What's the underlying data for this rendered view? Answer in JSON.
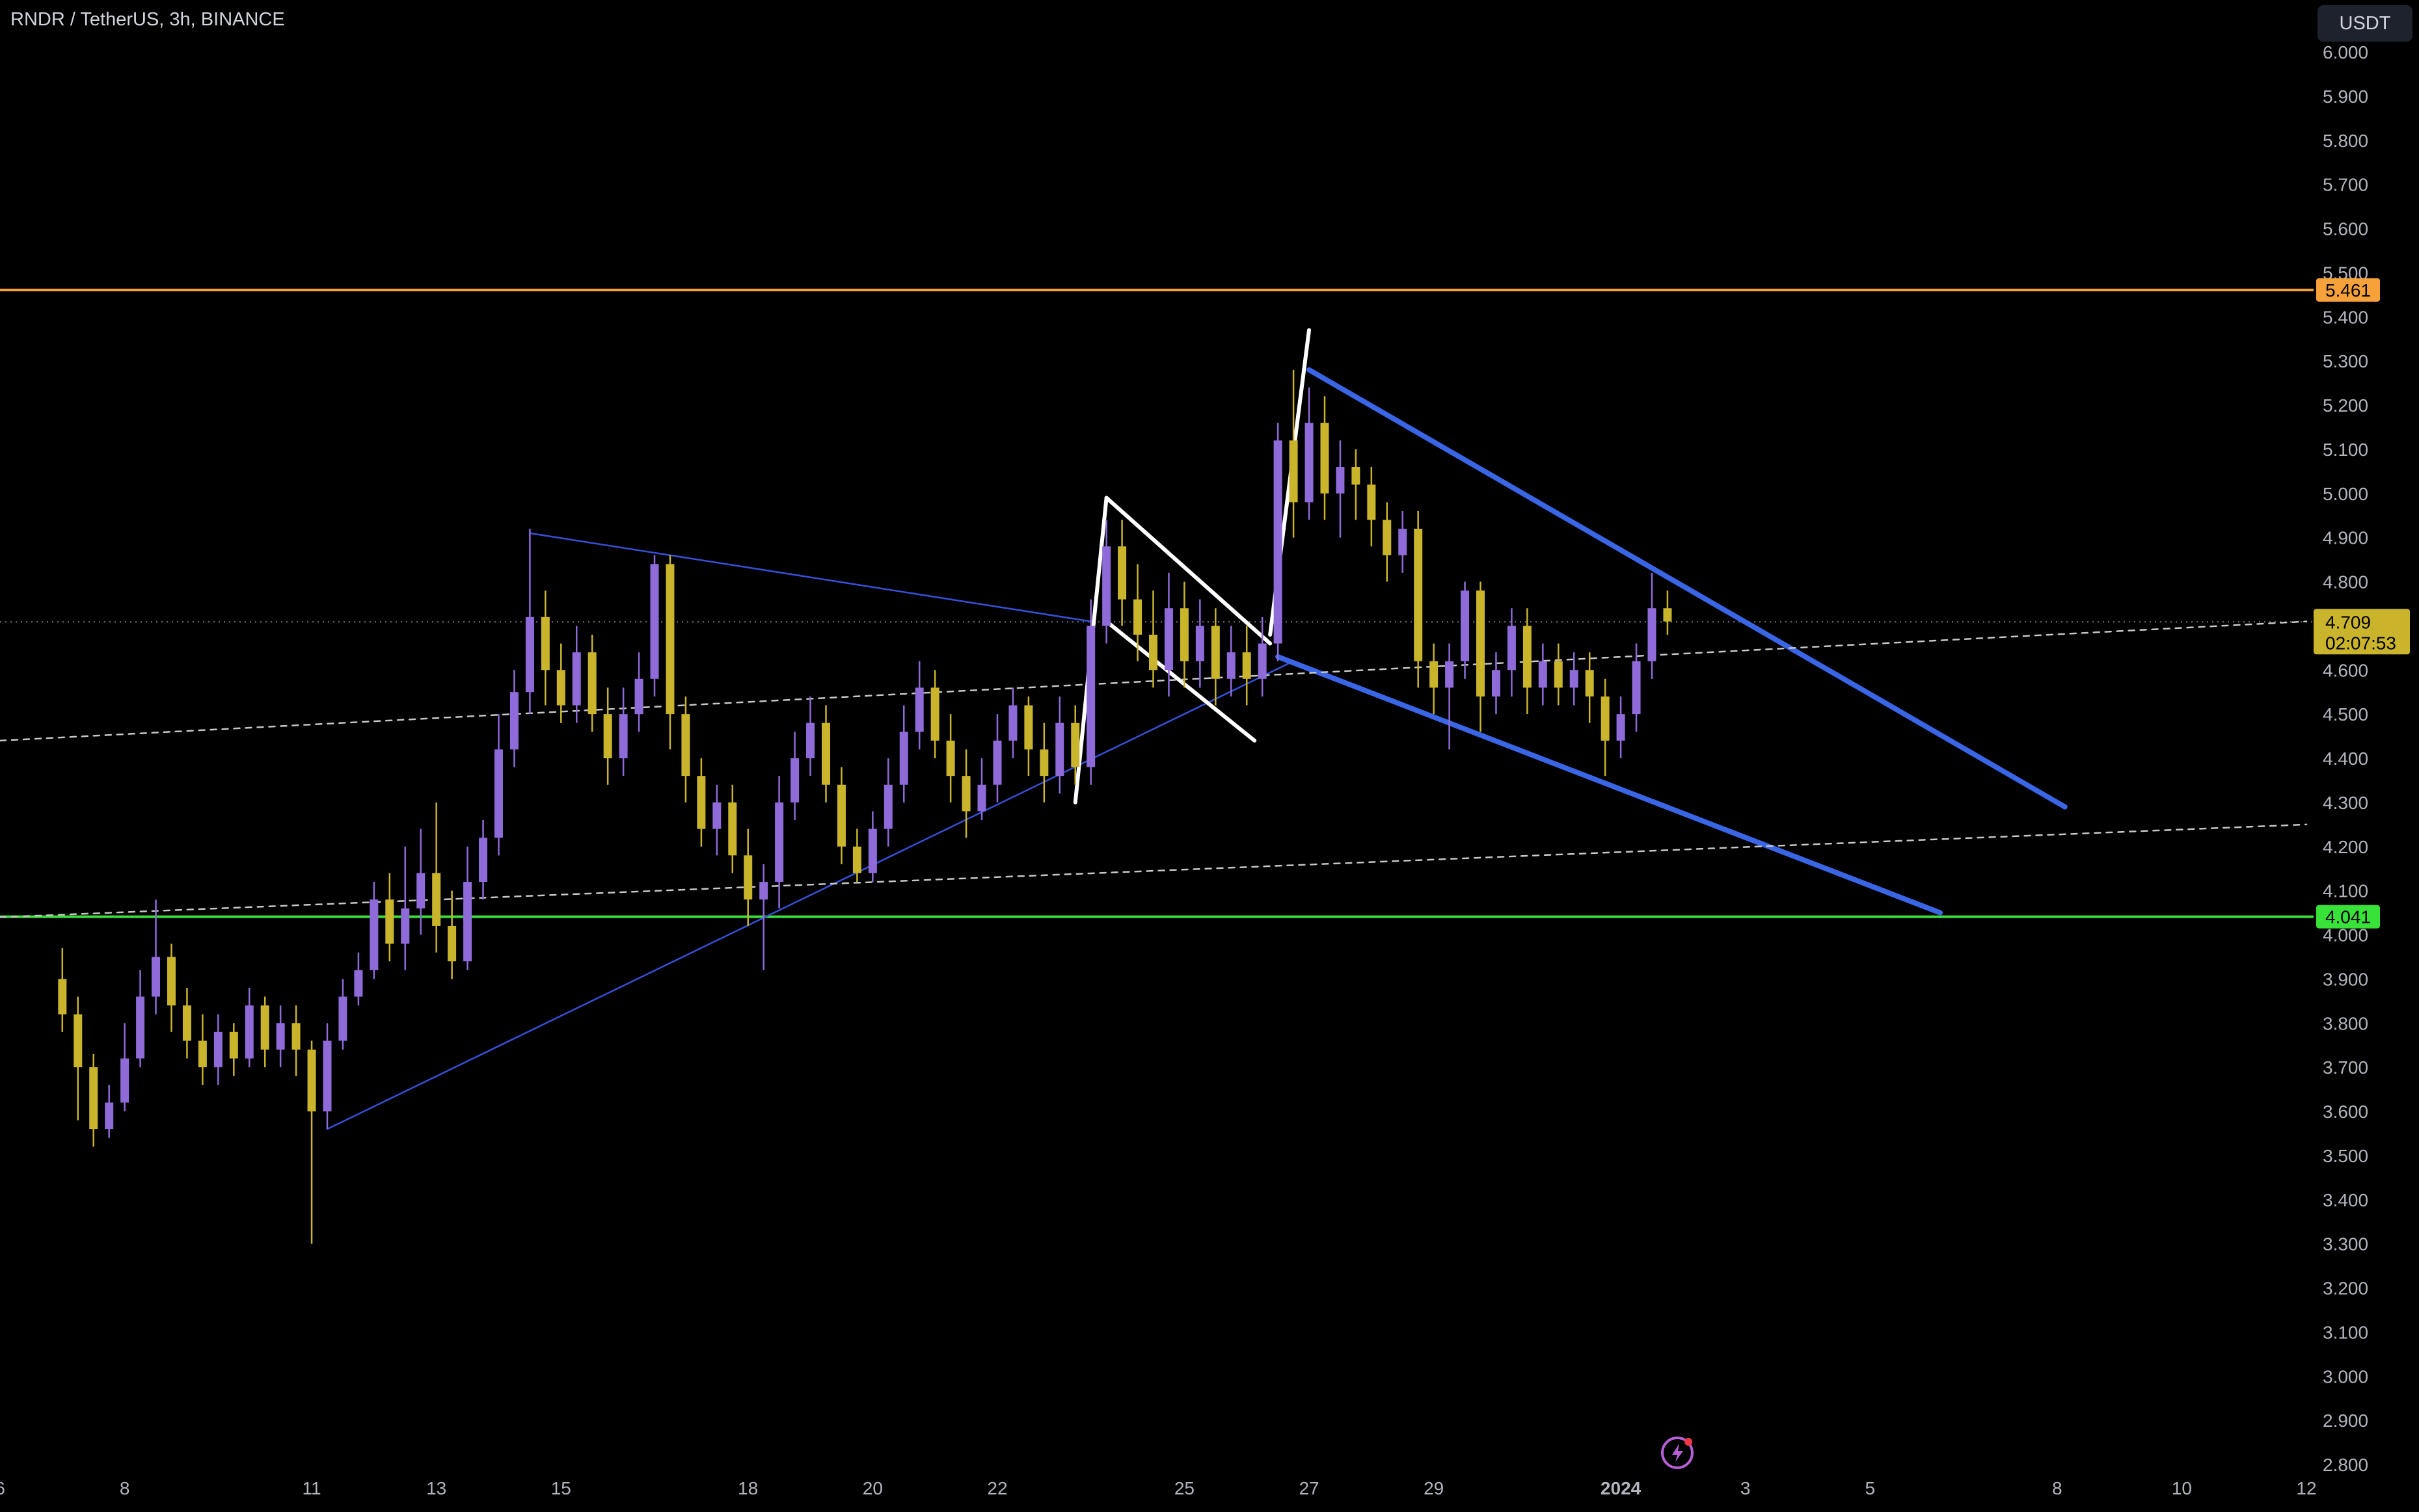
{
  "header": {
    "symbol_title": "RNDR / TetherUS, 3h, BINANCE",
    "currency_label": "USDT"
  },
  "colors": {
    "background": "#000000",
    "bullish": "#8e6bd9",
    "bearish": "#c9b42c",
    "resistance": "#f7a13b",
    "support": "#38e238",
    "channel": "#3a66e6",
    "thin_trend": "#3650d8",
    "flag": "#ffffff",
    "dashed": "#c8c8c8",
    "price_label_bg": "#c9b42c"
  },
  "icons": {
    "bottom": "lightning-icon"
  },
  "chart_data": {
    "type": "candlestick",
    "title": "RNDR / TetherUS, 3h, BINANCE",
    "ylim": [
      2.75,
      6.05
    ],
    "y_ticks": [
      "6.000",
      "5.900",
      "5.800",
      "5.700",
      "5.600",
      "5.500",
      "5.400",
      "5.300",
      "5.200",
      "5.100",
      "5.000",
      "4.900",
      "4.800",
      "4.700",
      "4.600",
      "4.500",
      "4.400",
      "4.300",
      "4.200",
      "4.100",
      "4.000",
      "3.900",
      "3.800",
      "3.700",
      "3.600",
      "3.500",
      "3.400",
      "3.300",
      "3.200",
      "3.100",
      "3.000",
      "2.900",
      "2.800"
    ],
    "x_tick_labels": [
      "6",
      "8",
      "11",
      "13",
      "15",
      "18",
      "20",
      "22",
      "25",
      "27",
      "29",
      "2024",
      "3",
      "5",
      "8",
      "10",
      "12"
    ],
    "x_tick_dates": [
      "2023-12-06",
      "2023-12-08",
      "2023-12-11",
      "2023-12-13",
      "2023-12-15",
      "2023-12-18",
      "2023-12-20",
      "2023-12-22",
      "2023-12-25",
      "2023-12-27",
      "2023-12-29",
      "2024-01-01",
      "2024-01-03",
      "2024-01-05",
      "2024-01-08",
      "2024-01-10",
      "2024-01-12"
    ],
    "xlim": [
      "2023-12-06T00:00",
      "2024-01-12T00:00"
    ],
    "candles": [
      [
        "2023-12-07T00:00",
        3.9,
        3.82,
        3.78,
        3.97
      ],
      [
        "2023-12-07T06:00",
        3.82,
        3.7,
        3.58,
        3.86
      ],
      [
        "2023-12-07T12:00",
        3.7,
        3.56,
        3.52,
        3.73
      ],
      [
        "2023-12-07T18:00",
        3.56,
        3.62,
        3.54,
        3.66
      ],
      [
        "2023-12-08T00:00",
        3.62,
        3.72,
        3.6,
        3.8
      ],
      [
        "2023-12-08T06:00",
        3.72,
        3.86,
        3.7,
        3.92
      ],
      [
        "2023-12-08T12:00",
        3.86,
        3.95,
        3.82,
        4.08
      ],
      [
        "2023-12-08T18:00",
        3.95,
        3.84,
        3.78,
        3.98
      ],
      [
        "2023-12-09T00:00",
        3.84,
        3.76,
        3.72,
        3.88
      ],
      [
        "2023-12-09T06:00",
        3.76,
        3.7,
        3.66,
        3.82
      ],
      [
        "2023-12-09T12:00",
        3.7,
        3.78,
        3.66,
        3.82
      ],
      [
        "2023-12-09T18:00",
        3.78,
        3.72,
        3.68,
        3.8
      ],
      [
        "2023-12-10T00:00",
        3.72,
        3.84,
        3.7,
        3.88
      ],
      [
        "2023-12-10T06:00",
        3.84,
        3.74,
        3.7,
        3.86
      ],
      [
        "2023-12-10T12:00",
        3.74,
        3.8,
        3.7,
        3.84
      ],
      [
        "2023-12-10T18:00",
        3.8,
        3.74,
        3.68,
        3.84
      ],
      [
        "2023-12-11T00:00",
        3.74,
        3.6,
        3.3,
        3.76
      ],
      [
        "2023-12-11T06:00",
        3.6,
        3.76,
        3.56,
        3.8
      ],
      [
        "2023-12-11T12:00",
        3.76,
        3.86,
        3.74,
        3.9
      ],
      [
        "2023-12-11T18:00",
        3.86,
        3.92,
        3.84,
        3.96
      ],
      [
        "2023-12-12T00:00",
        3.92,
        4.08,
        3.9,
        4.12
      ],
      [
        "2023-12-12T06:00",
        4.08,
        3.98,
        3.94,
        4.14
      ],
      [
        "2023-12-12T12:00",
        3.98,
        4.06,
        3.92,
        4.2
      ],
      [
        "2023-12-12T18:00",
        4.06,
        4.14,
        4.0,
        4.24
      ],
      [
        "2023-12-13T00:00",
        4.14,
        4.02,
        3.96,
        4.3
      ],
      [
        "2023-12-13T06:00",
        4.02,
        3.94,
        3.9,
        4.1
      ],
      [
        "2023-12-13T12:00",
        3.94,
        4.12,
        3.92,
        4.2
      ],
      [
        "2023-12-13T18:00",
        4.12,
        4.22,
        4.08,
        4.26
      ],
      [
        "2023-12-14T00:00",
        4.22,
        4.42,
        4.18,
        4.5
      ],
      [
        "2023-12-14T06:00",
        4.42,
        4.55,
        4.38,
        4.6
      ],
      [
        "2023-12-14T12:00",
        4.55,
        4.72,
        4.5,
        4.92
      ],
      [
        "2023-12-14T18:00",
        4.72,
        4.6,
        4.52,
        4.78
      ],
      [
        "2023-12-15T00:00",
        4.6,
        4.52,
        4.48,
        4.66
      ],
      [
        "2023-12-15T06:00",
        4.52,
        4.64,
        4.48,
        4.7
      ],
      [
        "2023-12-15T12:00",
        4.64,
        4.5,
        4.46,
        4.68
      ],
      [
        "2023-12-15T18:00",
        4.5,
        4.4,
        4.34,
        4.56
      ],
      [
        "2023-12-16T00:00",
        4.4,
        4.5,
        4.36,
        4.56
      ],
      [
        "2023-12-16T06:00",
        4.5,
        4.58,
        4.46,
        4.64
      ],
      [
        "2023-12-16T12:00",
        4.58,
        4.84,
        4.54,
        4.86
      ],
      [
        "2023-12-16T18:00",
        4.84,
        4.5,
        4.42,
        4.86
      ],
      [
        "2023-12-17T00:00",
        4.5,
        4.36,
        4.3,
        4.54
      ],
      [
        "2023-12-17T06:00",
        4.36,
        4.24,
        4.2,
        4.4
      ],
      [
        "2023-12-17T12:00",
        4.24,
        4.3,
        4.18,
        4.34
      ],
      [
        "2023-12-17T18:00",
        4.3,
        4.18,
        4.14,
        4.34
      ],
      [
        "2023-12-18T00:00",
        4.18,
        4.08,
        4.02,
        4.24
      ],
      [
        "2023-12-18T06:00",
        4.08,
        4.12,
        3.92,
        4.16
      ],
      [
        "2023-12-18T12:00",
        4.12,
        4.3,
        4.06,
        4.36
      ],
      [
        "2023-12-18T18:00",
        4.3,
        4.4,
        4.26,
        4.46
      ],
      [
        "2023-12-19T00:00",
        4.4,
        4.48,
        4.36,
        4.54
      ],
      [
        "2023-12-19T06:00",
        4.48,
        4.34,
        4.3,
        4.52
      ],
      [
        "2023-12-19T12:00",
        4.34,
        4.2,
        4.16,
        4.38
      ],
      [
        "2023-12-19T18:00",
        4.2,
        4.14,
        4.12,
        4.24
      ],
      [
        "2023-12-20T00:00",
        4.14,
        4.24,
        4.12,
        4.28
      ],
      [
        "2023-12-20T06:00",
        4.24,
        4.34,
        4.2,
        4.4
      ],
      [
        "2023-12-20T12:00",
        4.34,
        4.46,
        4.3,
        4.52
      ],
      [
        "2023-12-20T18:00",
        4.46,
        4.56,
        4.42,
        4.62
      ],
      [
        "2023-12-21T00:00",
        4.56,
        4.44,
        4.4,
        4.6
      ],
      [
        "2023-12-21T06:00",
        4.44,
        4.36,
        4.3,
        4.5
      ],
      [
        "2023-12-21T12:00",
        4.36,
        4.28,
        4.22,
        4.42
      ],
      [
        "2023-12-21T18:00",
        4.28,
        4.34,
        4.26,
        4.4
      ],
      [
        "2023-12-22T00:00",
        4.34,
        4.44,
        4.3,
        4.5
      ],
      [
        "2023-12-22T06:00",
        4.44,
        4.52,
        4.4,
        4.56
      ],
      [
        "2023-12-22T12:00",
        4.52,
        4.42,
        4.36,
        4.54
      ],
      [
        "2023-12-22T18:00",
        4.42,
        4.36,
        4.3,
        4.48
      ],
      [
        "2023-12-23T00:00",
        4.36,
        4.48,
        4.32,
        4.54
      ],
      [
        "2023-12-23T06:00",
        4.48,
        4.38,
        4.34,
        4.52
      ],
      [
        "2023-12-23T12:00",
        4.38,
        4.7,
        4.34,
        4.76
      ],
      [
        "2023-12-23T18:00",
        4.7,
        4.88,
        4.66,
        4.94
      ],
      [
        "2023-12-24T00:00",
        4.88,
        4.76,
        4.7,
        4.94
      ],
      [
        "2023-12-24T06:00",
        4.76,
        4.68,
        4.62,
        4.84
      ],
      [
        "2023-12-24T12:00",
        4.68,
        4.6,
        4.56,
        4.78
      ],
      [
        "2023-12-24T18:00",
        4.6,
        4.74,
        4.54,
        4.82
      ],
      [
        "2023-12-25T00:00",
        4.74,
        4.62,
        4.56,
        4.8
      ],
      [
        "2023-12-25T06:00",
        4.62,
        4.7,
        4.56,
        4.76
      ],
      [
        "2023-12-25T12:00",
        4.7,
        4.58,
        4.52,
        4.74
      ],
      [
        "2023-12-25T18:00",
        4.58,
        4.64,
        4.54,
        4.7
      ],
      [
        "2023-12-26T00:00",
        4.64,
        4.58,
        4.52,
        4.7
      ],
      [
        "2023-12-26T06:00",
        4.58,
        4.66,
        4.54,
        4.72
      ],
      [
        "2023-12-26T12:00",
        4.66,
        5.12,
        4.62,
        5.16
      ],
      [
        "2023-12-26T18:00",
        5.12,
        4.98,
        4.9,
        5.28
      ],
      [
        "2023-12-27T00:00",
        4.98,
        5.16,
        4.94,
        5.24
      ],
      [
        "2023-12-27T06:00",
        5.16,
        5.0,
        4.94,
        5.22
      ],
      [
        "2023-12-27T12:00",
        5.0,
        5.06,
        4.9,
        5.12
      ],
      [
        "2023-12-27T18:00",
        5.06,
        5.02,
        4.94,
        5.1
      ],
      [
        "2023-12-28T00:00",
        5.02,
        4.94,
        4.88,
        5.06
      ],
      [
        "2023-12-28T06:00",
        4.94,
        4.86,
        4.8,
        4.98
      ],
      [
        "2023-12-28T12:00",
        4.86,
        4.92,
        4.82,
        4.96
      ],
      [
        "2023-12-28T18:00",
        4.92,
        4.62,
        4.56,
        4.96
      ],
      [
        "2023-12-29T00:00",
        4.62,
        4.56,
        4.5,
        4.66
      ],
      [
        "2023-12-29T06:00",
        4.56,
        4.62,
        4.42,
        4.66
      ],
      [
        "2023-12-29T12:00",
        4.62,
        4.78,
        4.58,
        4.8
      ],
      [
        "2023-12-29T18:00",
        4.78,
        4.54,
        4.46,
        4.8
      ],
      [
        "2023-12-30T00:00",
        4.54,
        4.6,
        4.5,
        4.64
      ],
      [
        "2023-12-30T06:00",
        4.6,
        4.7,
        4.54,
        4.74
      ],
      [
        "2023-12-30T12:00",
        4.7,
        4.56,
        4.5,
        4.74
      ],
      [
        "2023-12-30T18:00",
        4.56,
        4.62,
        4.52,
        4.66
      ],
      [
        "2023-12-31T00:00",
        4.62,
        4.56,
        4.52,
        4.66
      ],
      [
        "2023-12-31T06:00",
        4.56,
        4.6,
        4.52,
        4.64
      ],
      [
        "2023-12-31T12:00",
        4.6,
        4.54,
        4.48,
        4.64
      ],
      [
        "2023-12-31T18:00",
        4.54,
        4.44,
        4.36,
        4.58
      ],
      [
        "2024-01-01T00:00",
        4.44,
        4.5,
        4.4,
        4.54
      ],
      [
        "2024-01-01T06:00",
        4.5,
        4.62,
        4.46,
        4.66
      ],
      [
        "2024-01-01T12:00",
        4.62,
        4.74,
        4.58,
        4.82
      ],
      [
        "2024-01-01T18:00",
        4.74,
        4.71,
        4.68,
        4.78
      ]
    ],
    "horizontal_lines": [
      {
        "price": 5.461,
        "label": "5.461",
        "color": "#f7a13b"
      },
      {
        "price": 4.041,
        "label": "4.041",
        "color": "#38e238"
      }
    ],
    "current_price": {
      "label": "4.709",
      "countdown": "02:07:53",
      "price": 4.709
    },
    "trendlines": [
      {
        "style": "thin",
        "points": [
          [
            "2023-12-11T06:00",
            3.56
          ],
          [
            "2023-12-26T18:00",
            4.62
          ]
        ]
      },
      {
        "style": "thin",
        "points": [
          [
            "2023-12-14T12:00",
            4.91
          ],
          [
            "2023-12-23T12:00",
            4.71
          ]
        ]
      },
      {
        "style": "thick",
        "points": [
          [
            "2023-12-27T00:00",
            5.28
          ],
          [
            "2024-01-08T03:00",
            4.29
          ]
        ]
      },
      {
        "style": "thick",
        "points": [
          [
            "2023-12-26T12:00",
            4.63
          ],
          [
            "2024-01-06T03:00",
            4.05
          ]
        ]
      },
      {
        "style": "flag",
        "points": [
          [
            "2023-12-23T06:00",
            4.3
          ],
          [
            "2023-12-23T18:00",
            4.99
          ]
        ]
      },
      {
        "style": "flag",
        "points": [
          [
            "2023-12-23T18:00",
            4.99
          ],
          [
            "2023-12-26T09:00",
            4.66
          ]
        ]
      },
      {
        "style": "flag",
        "points": [
          [
            "2023-12-23T18:00",
            4.71
          ],
          [
            "2023-12-26T03:00",
            4.44
          ]
        ]
      },
      {
        "style": "flag",
        "points": [
          [
            "2023-12-26T09:00",
            4.68
          ],
          [
            "2023-12-27T00:00",
            5.37
          ]
        ]
      },
      {
        "style": "dashed",
        "points": [
          [
            "2023-12-06T00:00",
            4.44
          ],
          [
            "2024-01-12T00:00",
            4.71
          ]
        ]
      },
      {
        "style": "dashed",
        "points": [
          [
            "2023-12-06T00:00",
            4.04
          ],
          [
            "2024-01-12T00:00",
            4.25
          ]
        ]
      }
    ]
  }
}
